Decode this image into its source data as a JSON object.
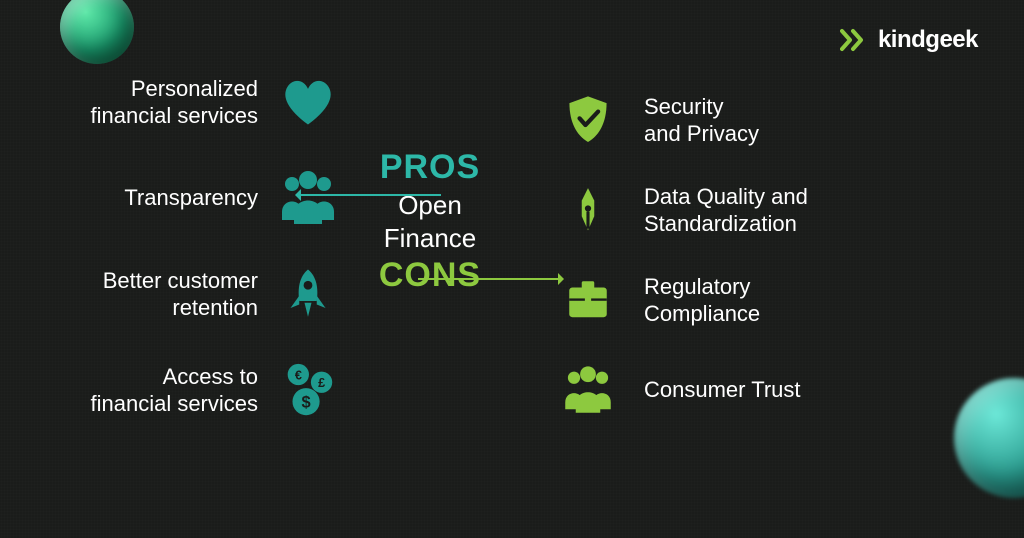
{
  "brand": {
    "name": "kindgeek",
    "logo_color": "#8dc93f",
    "text_color": "#ffffff"
  },
  "background_color": "#1a1c1a",
  "title": "Open\nFinance",
  "title_color": "#ffffff",
  "title_fontsize": 26,
  "pros": {
    "label": "PROS",
    "label_color": "#2db8a8",
    "label_fontsize": 34,
    "arrow_color": "#2db8a8",
    "icon_color": "#1e9a8e",
    "items": [
      {
        "text": "Personalized\nfinancial services",
        "icon": "heart"
      },
      {
        "text": "Transparency",
        "icon": "people"
      },
      {
        "text": "Better customer\nretention",
        "icon": "rocket"
      },
      {
        "text": "Access to\nfinancial services",
        "icon": "coins"
      }
    ]
  },
  "cons": {
    "label": "CONS",
    "label_color": "#8dc93f",
    "label_fontsize": 34,
    "arrow_color": "#8dc93f",
    "icon_color": "#8dc93f",
    "items": [
      {
        "text": "Security\nand Privacy",
        "icon": "shield-check"
      },
      {
        "text": "Data Quality and\nStandardization",
        "icon": "pen-nib"
      },
      {
        "text": "Regulatory\nCompliance",
        "icon": "briefcase"
      },
      {
        "text": "Consumer Trust",
        "icon": "people"
      }
    ]
  },
  "decor": {
    "sphere_tl_color": "#1a9b6e",
    "sphere_br_color": "#2a9b8e"
  }
}
